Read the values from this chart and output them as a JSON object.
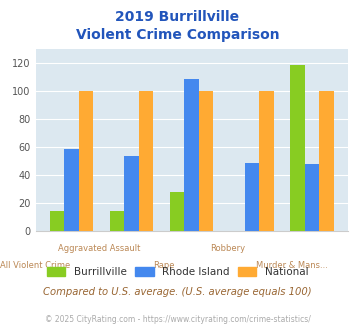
{
  "title_line1": "2019 Burrillville",
  "title_line2": "Violent Crime Comparison",
  "categories_top": [
    "",
    "Aggravated Assault",
    "",
    "Robbery",
    ""
  ],
  "categories_bot": [
    "All Violent Crime",
    "",
    "Rape",
    "",
    "Murder & Mans..."
  ],
  "burrillville": [
    14,
    14,
    28,
    0,
    119
  ],
  "rhode_island": [
    59,
    54,
    109,
    49,
    48
  ],
  "national": [
    100,
    100,
    100,
    100,
    100
  ],
  "colors": {
    "burrillville": "#88cc22",
    "rhode_island": "#4488ee",
    "national": "#ffaa33"
  },
  "ylim": [
    0,
    130
  ],
  "yticks": [
    0,
    20,
    40,
    60,
    80,
    100,
    120
  ],
  "background_color": "#dce8f0",
  "note": "Compared to U.S. average. (U.S. average equals 100)",
  "footer": "© 2025 CityRating.com - https://www.cityrating.com/crime-statistics/",
  "title_color": "#2255bb",
  "xtick_color": "#bb8855",
  "footer_color": "#aaaaaa",
  "footer_link_color": "#4488cc",
  "note_color": "#996633",
  "legend_label_color": "#333333"
}
